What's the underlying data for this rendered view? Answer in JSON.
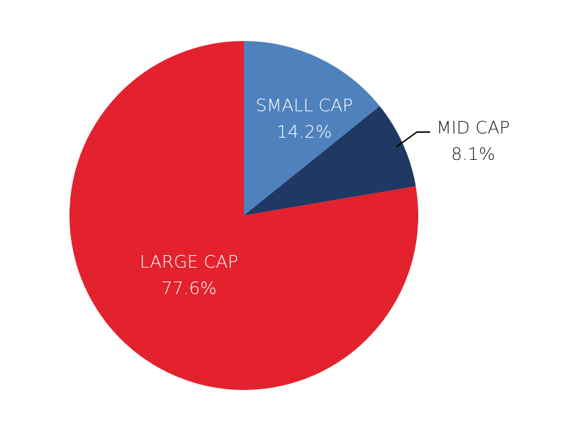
{
  "chart_data": {
    "type": "pie",
    "title": "",
    "slices": [
      {
        "label": "SMALL CAP",
        "value": 14.2,
        "value_label": "14.2%",
        "color": "#4F81BD",
        "text_color": "#ffffff"
      },
      {
        "label": "MID CAP",
        "value": 8.1,
        "value_label": "8.1%",
        "color": "#1F3864",
        "text_color": "#1a1a1a"
      },
      {
        "label": "LARGE CAP",
        "value": 77.6,
        "value_label": "77.6%",
        "color": "#E3222E",
        "text_color": "#ffffff"
      }
    ],
    "start": "12 o'clock",
    "direction": "clockwise",
    "legend": "none"
  }
}
